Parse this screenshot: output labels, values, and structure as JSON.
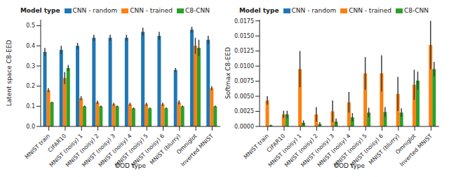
{
  "chart_data": [
    {
      "type": "bar",
      "y_label": "Latent space C8-EED",
      "x_label": "OOD type",
      "legend": "top",
      "legend_title": "Model type",
      "categories": [
        "MNIST train",
        "CIFAR10",
        "MNIST (noisy) 1",
        "MNIST (noisy) 2",
        "MNIST (noisy) 3",
        "MNIST (noisy) 4",
        "MNIST (noisy) 5",
        "MNIST (noisy) 6",
        "MNIST (blurry)",
        "Omniglot",
        "Inverted MNIST"
      ],
      "ylim": [
        0,
        0.53
      ],
      "yticks": [
        {
          "value": 0,
          "label": "0.0"
        },
        {
          "value": 0.1,
          "label": "0.1"
        },
        {
          "value": 0.2,
          "label": "0.2"
        },
        {
          "value": 0.3,
          "label": "0.3"
        },
        {
          "value": 0.4,
          "label": "0.4"
        },
        {
          "value": 0.5,
          "label": "0.5"
        }
      ],
      "series": [
        {
          "name": "CNN - random",
          "color": "#1f77b4",
          "values": [
            0.37,
            0.38,
            0.4,
            0.44,
            0.44,
            0.44,
            0.47,
            0.45,
            0.28,
            0.48,
            0.43
          ],
          "errors": [
            0.02,
            0.02,
            0.015,
            0.015,
            0.015,
            0.015,
            0.02,
            0.02,
            0.01,
            0.015,
            0.02
          ]
        },
        {
          "name": "CNN - trained",
          "color": "#ff7f0e",
          "values": [
            0.18,
            0.24,
            0.14,
            0.12,
            0.11,
            0.11,
            0.11,
            0.11,
            0.12,
            0.4,
            0.19
          ],
          "errors": [
            0.01,
            0.03,
            0.01,
            0.008,
            0.008,
            0.008,
            0.008,
            0.008,
            0.01,
            0.04,
            0.01
          ]
        },
        {
          "name": "C8-CNN",
          "color": "#2ca02c",
          "values": [
            0.12,
            0.29,
            0.1,
            0.1,
            0.1,
            0.09,
            0.09,
            0.09,
            0.1,
            0.39,
            0.1
          ],
          "errors": [
            0.003,
            0.015,
            0.004,
            0.004,
            0.004,
            0.004,
            0.004,
            0.004,
            0.004,
            0.04,
            0.004
          ]
        }
      ]
    },
    {
      "type": "bar",
      "y_label": "Softmax C8-EED",
      "x_label": "OOD type",
      "legend": "top",
      "legend_title": "Model type",
      "categories": [
        "MNIST train",
        "CIFAR10",
        "MNIST (noisy) 1",
        "MNIST (noisy) 2",
        "MNIST (noisy) 3",
        "MNIST (noisy) 4",
        "MNIST (noisy) 5",
        "MNIST (noisy) 6",
        "MNIST (blurry)",
        "Omniglot",
        "Inverted MNIST"
      ],
      "ylim": [
        0,
        0.0177
      ],
      "yticks": [
        {
          "value": 0,
          "label": "0.0000"
        },
        {
          "value": 0.0025,
          "label": "0.0025"
        },
        {
          "value": 0.005,
          "label": "0.0050"
        },
        {
          "value": 0.0075,
          "label": "0.0075"
        },
        {
          "value": 0.01,
          "label": "0.0100"
        },
        {
          "value": 0.0125,
          "label": "0.0125"
        },
        {
          "value": 0.015,
          "label": "0.0150"
        },
        {
          "value": 0.0175,
          "label": "0.0175"
        }
      ],
      "series": [
        {
          "name": "CNN - random",
          "color": "#1f77b4",
          "values": [
            0,
            0,
            0,
            0,
            0,
            0,
            0,
            0,
            0,
            0,
            0
          ],
          "errors": [
            0,
            0,
            0,
            0,
            0,
            0,
            0,
            0,
            0,
            0,
            0
          ]
        },
        {
          "name": "CNN - trained",
          "color": "#ff7f0e",
          "values": [
            0.0043,
            0.002,
            0.0095,
            0.002,
            0.0025,
            0.004,
            0.0088,
            0.0088,
            0.0054,
            0.0069,
            0.0135
          ],
          "errors": [
            0.0007,
            0.0006,
            0.003,
            0.0012,
            0.0018,
            0.0017,
            0.0027,
            0.003,
            0.0028,
            0.0025,
            0.004
          ]
        },
        {
          "name": "C8-CNN",
          "color": "#2ca02c",
          "values": [
            0.0002,
            0.002,
            0.0006,
            0.0004,
            0.0008,
            0.0015,
            0.0023,
            0.0024,
            0.0023,
            0.0076,
            0.0095
          ],
          "errors": [
            0.0001,
            0.0006,
            0.0004,
            0.0003,
            0.0005,
            0.0007,
            0.0008,
            0.0008,
            0.0007,
            0.0015,
            0.0012
          ]
        }
      ]
    }
  ]
}
